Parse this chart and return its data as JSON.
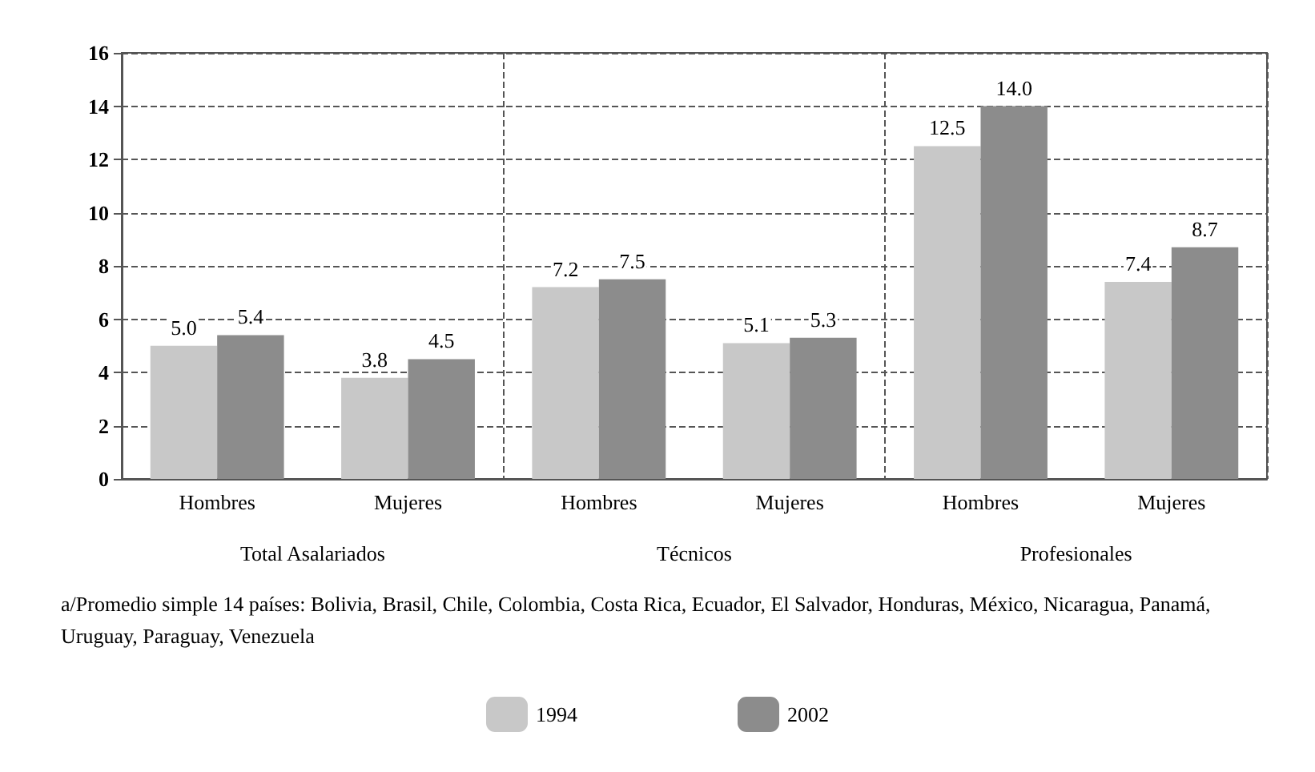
{
  "chart_data": {
    "type": "bar",
    "categories": [
      "Hombres",
      "Mujeres",
      "Hombres",
      "Mujeres",
      "Hombres",
      "Mujeres"
    ],
    "series": [
      {
        "name": "1994",
        "color": "#c8c8c8",
        "values": [
          5.0,
          3.8,
          7.2,
          5.1,
          12.5,
          7.4
        ],
        "value_labels": [
          "5.0",
          "3.8",
          "7.2",
          "5.1",
          "12.5",
          "7.4"
        ]
      },
      {
        "name": "2002",
        "color": "#8c8c8c",
        "values": [
          5.4,
          4.5,
          7.5,
          5.3,
          14.0,
          8.7
        ],
        "value_labels": [
          "5.4",
          "4.5",
          "7.5",
          "5.3",
          "14.0",
          "8.7"
        ]
      }
    ],
    "ylim": [
      0,
      16
    ],
    "yticks": [
      0,
      2,
      4,
      6,
      8,
      10,
      12,
      14,
      16
    ],
    "grid": true,
    "legend": "bottom",
    "annotations": [
      "Total Asalariados",
      "Técnicos",
      "Profesionales",
      "a/Promedio simple 14 países: Bolivia, Brasil, Chile, Colombia, Costa Rica, Ecuador, El Salvador, Honduras, México, Nicaragua, Panamá, Uruguay, Paraguay, Venezuela"
    ]
  }
}
